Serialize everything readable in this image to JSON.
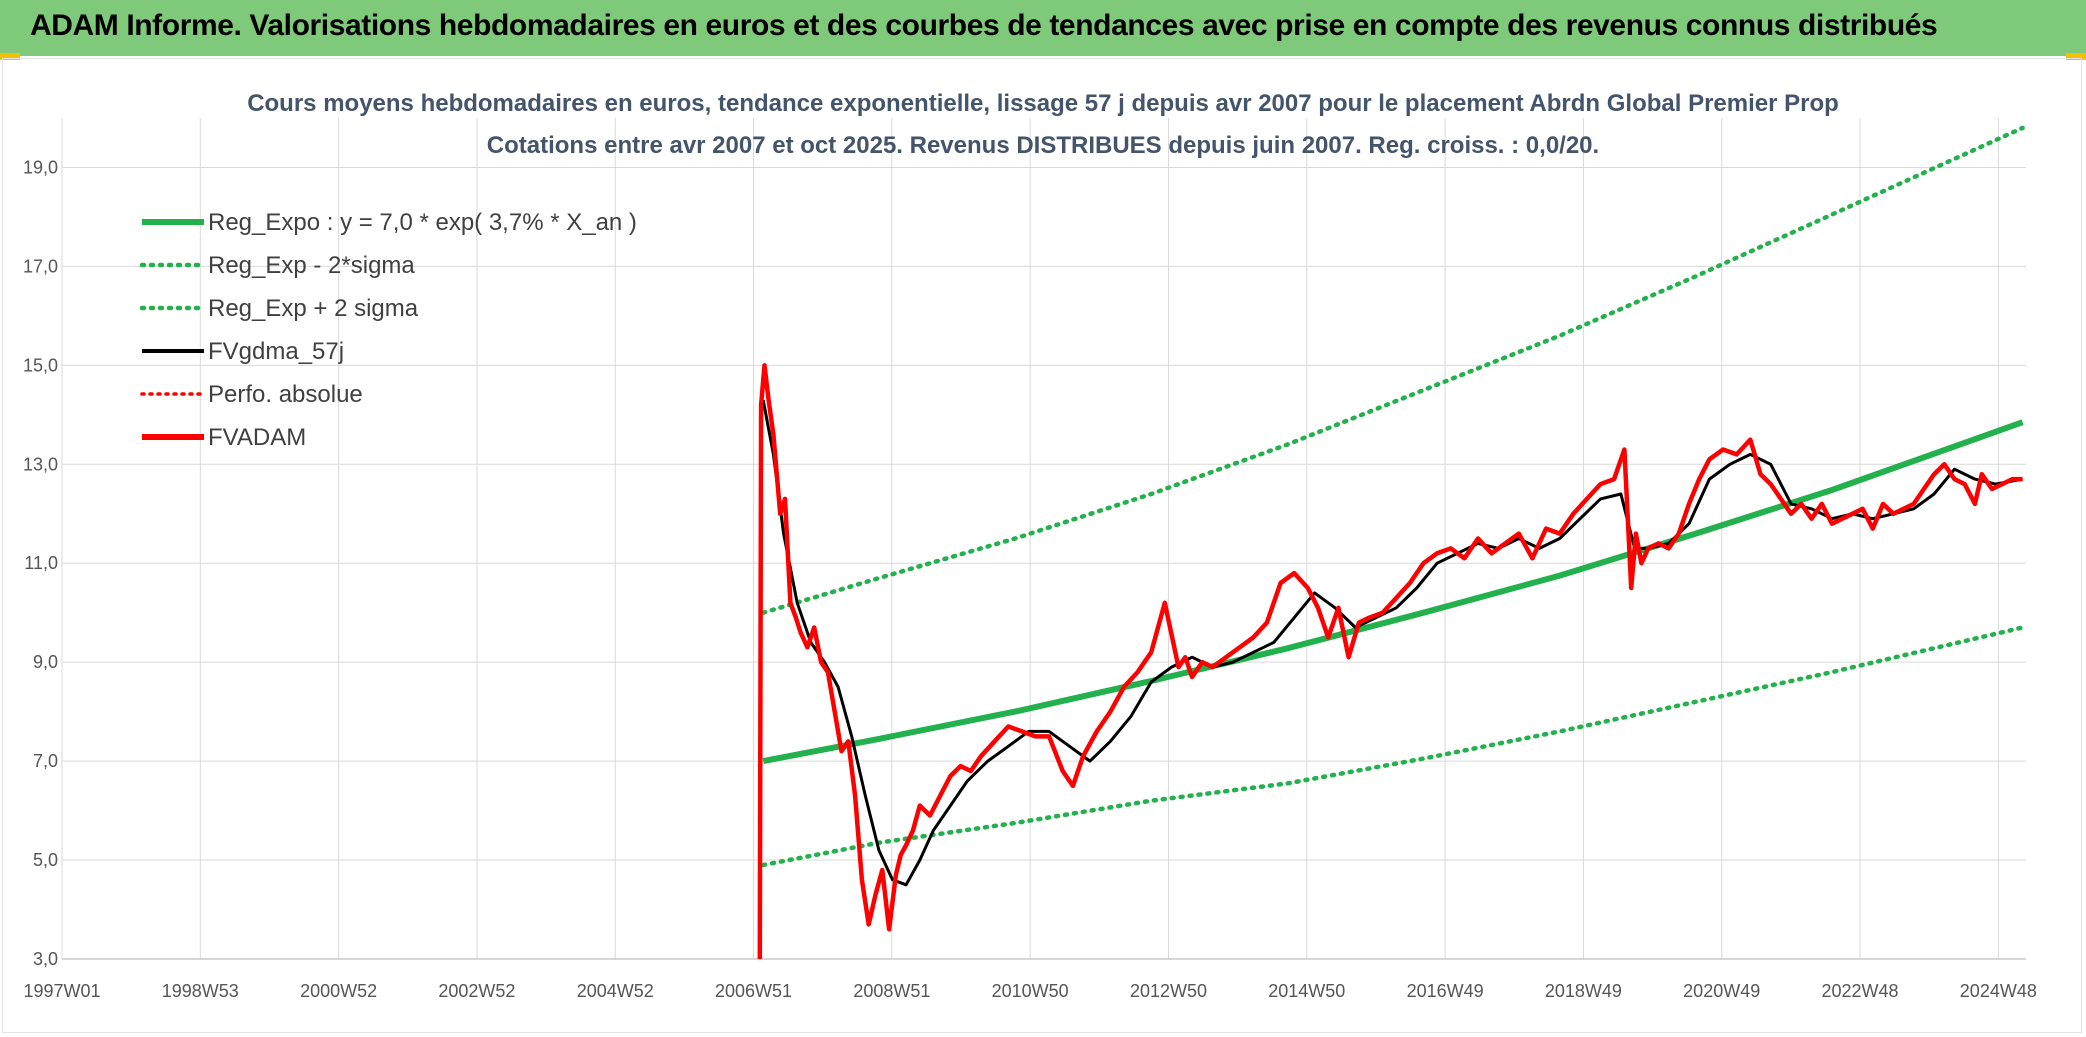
{
  "header": {
    "title": "ADAM Informe. Valorisations hebdomadaires en euros et des courbes de tendances avec prise en compte des revenus connus distribués"
  },
  "colors": {
    "banner": "#7fc97a",
    "regression": "#22b14c",
    "black_series": "#000000",
    "red_series": "#ff0000",
    "corner_accent": "#f2c200"
  },
  "chart_data": {
    "type": "line",
    "title": "Cours moyens hebdomadaires en euros, tendance exponentielle, lissage 57 j depuis avr 2007 pour le placement Abrdn Global Premier Prop",
    "subtitle": "Cotations entre avr 2007 et oct 2025. Revenus DISTRIBUES depuis juin 2007. Reg. croiss. : 0,0/20.",
    "xlabel": "",
    "ylabel": "",
    "ylim": [
      3,
      20
    ],
    "y_ticks": [
      "3,0",
      "5,0",
      "7,0",
      "9,0",
      "11,0",
      "13,0",
      "15,0",
      "17,0",
      "19,0"
    ],
    "x_ticks": [
      "1997W01",
      "1998W53",
      "2000W52",
      "2002W52",
      "2004W52",
      "2006W51",
      "2008W51",
      "2010W50",
      "2012W50",
      "2014W50",
      "2016W49",
      "2018W49",
      "2020W49",
      "2022W48",
      "2024W48"
    ],
    "xlim": [
      1997.0,
      2025.85
    ],
    "grid": true,
    "legend_position": "top-left",
    "legend": [
      {
        "label": "Reg_Expo : y = 7,0 * exp( 3,7% *  X_an )",
        "style": "solid-thick",
        "color": "#22b14c"
      },
      {
        "label": "Reg_Exp - 2*sigma",
        "style": "dotted",
        "color": "#22b14c"
      },
      {
        "label": "Reg_Exp + 2 sigma",
        "style": "dotted",
        "color": "#22b14c"
      },
      {
        "label": "FVgdma_57j",
        "style": "solid",
        "color": "#000000"
      },
      {
        "label": "Perfo. absolue",
        "style": "dotted",
        "color": "#ff0000"
      },
      {
        "label": "FVADAM",
        "style": "solid-thick",
        "color": "#ff0000"
      }
    ],
    "series": [
      {
        "name": "Reg_Expo : y = 7,0 * exp( 3,7% *  X_an )",
        "x": [
          2007.3,
          2009.0,
          2011.0,
          2013.0,
          2015.0,
          2017.0,
          2019.0,
          2021.0,
          2023.0,
          2025.8
        ],
        "y": [
          7.0,
          7.45,
          8.0,
          8.62,
          9.28,
          10.0,
          10.75,
          11.6,
          12.48,
          13.85
        ]
      },
      {
        "name": "Reg_Exp - 2*sigma",
        "x": [
          2007.3,
          2009.0,
          2011.0,
          2013.0,
          2015.0,
          2017.0,
          2019.0,
          2021.0,
          2023.0,
          2025.8
        ],
        "y": [
          4.9,
          5.35,
          5.75,
          6.2,
          6.55,
          7.05,
          7.6,
          8.2,
          8.8,
          9.7
        ]
      },
      {
        "name": "Reg_Exp + 2 sigma",
        "x": [
          2007.3,
          2009.0,
          2011.0,
          2013.0,
          2015.0,
          2017.0,
          2019.0,
          2021.0,
          2023.0,
          2025.8
        ],
        "y": [
          10.0,
          10.7,
          11.5,
          12.4,
          13.4,
          14.5,
          15.6,
          16.8,
          18.05,
          19.8
        ]
      },
      {
        "name": "FVgdma_57j",
        "x": [
          2007.3,
          2007.45,
          2007.6,
          2007.8,
          2008.0,
          2008.2,
          2008.4,
          2008.6,
          2008.8,
          2009.0,
          2009.2,
          2009.4,
          2009.6,
          2009.8,
          2010.0,
          2010.3,
          2010.6,
          2010.9,
          2011.2,
          2011.5,
          2011.8,
          2012.1,
          2012.4,
          2012.7,
          2013.0,
          2013.3,
          2013.6,
          2013.9,
          2014.2,
          2014.5,
          2014.8,
          2015.1,
          2015.4,
          2015.7,
          2016.0,
          2016.3,
          2016.6,
          2016.9,
          2017.2,
          2017.5,
          2017.8,
          2018.1,
          2018.4,
          2018.7,
          2019.0,
          2019.3,
          2019.6,
          2019.9,
          2020.1,
          2020.3,
          2020.6,
          2020.9,
          2021.2,
          2021.5,
          2021.8,
          2022.1,
          2022.4,
          2022.7,
          2023.0,
          2023.3,
          2023.6,
          2023.9,
          2024.2,
          2024.5,
          2024.8,
          2025.1,
          2025.4,
          2025.8
        ],
        "y": [
          14.3,
          13.2,
          11.6,
          10.2,
          9.4,
          9.0,
          8.5,
          7.5,
          6.3,
          5.2,
          4.6,
          4.5,
          5.0,
          5.6,
          6.0,
          6.6,
          7.0,
          7.3,
          7.6,
          7.6,
          7.3,
          7.0,
          7.4,
          7.9,
          8.6,
          8.9,
          9.1,
          8.9,
          9.0,
          9.2,
          9.4,
          9.9,
          10.4,
          10.1,
          9.7,
          9.9,
          10.1,
          10.5,
          11.0,
          11.2,
          11.4,
          11.3,
          11.5,
          11.3,
          11.5,
          11.9,
          12.3,
          12.4,
          11.3,
          11.3,
          11.4,
          11.8,
          12.7,
          13.0,
          13.2,
          13.0,
          12.2,
          12.1,
          11.9,
          12.0,
          11.9,
          12.0,
          12.1,
          12.4,
          12.9,
          12.7,
          12.6,
          12.7
        ]
      },
      {
        "name": "FVADAM",
        "x": [
          2007.25,
          2007.27,
          2007.32,
          2007.38,
          2007.45,
          2007.55,
          2007.62,
          2007.7,
          2007.78,
          2007.85,
          2007.95,
          2008.05,
          2008.15,
          2008.25,
          2008.35,
          2008.45,
          2008.55,
          2008.65,
          2008.75,
          2008.85,
          2008.95,
          2009.05,
          2009.15,
          2009.25,
          2009.32,
          2009.4,
          2009.5,
          2009.6,
          2009.75,
          2009.9,
          2010.05,
          2010.2,
          2010.35,
          2010.5,
          2010.7,
          2010.9,
          2011.1,
          2011.3,
          2011.5,
          2011.7,
          2011.85,
          2012.0,
          2012.2,
          2012.4,
          2012.6,
          2012.8,
          2013.0,
          2013.2,
          2013.4,
          2013.5,
          2013.6,
          2013.75,
          2013.9,
          2014.1,
          2014.3,
          2014.5,
          2014.7,
          2014.9,
          2015.1,
          2015.3,
          2015.45,
          2015.6,
          2015.75,
          2015.9,
          2016.05,
          2016.2,
          2016.4,
          2016.6,
          2016.8,
          2017.0,
          2017.2,
          2017.4,
          2017.6,
          2017.8,
          2018.0,
          2018.2,
          2018.4,
          2018.6,
          2018.8,
          2019.0,
          2019.2,
          2019.4,
          2019.6,
          2019.8,
          2019.95,
          2020.05,
          2020.12,
          2020.2,
          2020.3,
          2020.45,
          2020.6,
          2020.75,
          2020.9,
          2021.05,
          2021.2,
          2021.4,
          2021.6,
          2021.8,
          2021.95,
          2022.1,
          2022.25,
          2022.4,
          2022.55,
          2022.7,
          2022.85,
          2023.0,
          2023.15,
          2023.3,
          2023.45,
          2023.6,
          2023.75,
          2023.9,
          2024.05,
          2024.2,
          2024.35,
          2024.5,
          2024.65,
          2024.8,
          2024.95,
          2025.1,
          2025.2,
          2025.35,
          2025.5,
          2025.65,
          2025.8
        ],
        "y": [
          3.0,
          14.2,
          15.0,
          14.3,
          13.6,
          12.0,
          12.3,
          10.2,
          9.9,
          9.6,
          9.3,
          9.7,
          9.0,
          8.8,
          8.0,
          7.2,
          7.4,
          6.3,
          4.6,
          3.7,
          4.3,
          4.8,
          3.6,
          4.7,
          5.1,
          5.3,
          5.6,
          6.1,
          5.9,
          6.3,
          6.7,
          6.9,
          6.8,
          7.1,
          7.4,
          7.7,
          7.6,
          7.5,
          7.5,
          6.8,
          6.5,
          7.1,
          7.6,
          8.0,
          8.5,
          8.8,
          9.2,
          10.2,
          8.9,
          9.1,
          8.7,
          9.0,
          8.9,
          9.1,
          9.3,
          9.5,
          9.8,
          10.6,
          10.8,
          10.5,
          10.1,
          9.5,
          10.1,
          9.1,
          9.8,
          9.9,
          10.0,
          10.3,
          10.6,
          11.0,
          11.2,
          11.3,
          11.1,
          11.5,
          11.2,
          11.4,
          11.6,
          11.1,
          11.7,
          11.6,
          12.0,
          12.3,
          12.6,
          12.7,
          13.3,
          10.5,
          11.6,
          11.0,
          11.3,
          11.4,
          11.3,
          11.6,
          12.2,
          12.7,
          13.1,
          13.3,
          13.2,
          13.5,
          12.8,
          12.6,
          12.3,
          12.0,
          12.2,
          11.9,
          12.2,
          11.8,
          11.9,
          12.0,
          12.1,
          11.7,
          12.2,
          12.0,
          12.1,
          12.2,
          12.5,
          12.8,
          13.0,
          12.7,
          12.6,
          12.2,
          12.8,
          12.5,
          12.6,
          12.7,
          12.7
        ]
      }
    ]
  }
}
